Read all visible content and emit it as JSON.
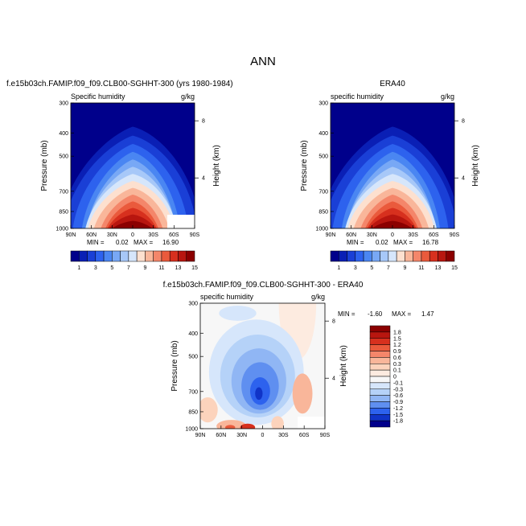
{
  "page_title": "ANN",
  "chart_data": [
    {
      "id": "model",
      "type": "heatmap",
      "title": "f.e15b03ch.FAMIP.f09_f09.CLB00-SGHHT-300 (yrs 1980-1984)",
      "left_label": "Specific humidity",
      "right_label": "g/kg",
      "ylabel": "Pressure (mb)",
      "ylabel_right": "Height (km)",
      "x_ticks": [
        "90N",
        "60N",
        "30N",
        "0",
        "30S",
        "60S",
        "90S"
      ],
      "y_ticks": [
        "300",
        "400",
        "500",
        "700",
        "850",
        "1000"
      ],
      "y_ticks_right": [
        "8",
        "4"
      ],
      "min_text": "MIN =",
      "min_value": "0.02",
      "max_text": "MAX =",
      "max_value": "16.90",
      "ylim": [
        1000,
        300
      ],
      "xlim": [
        90,
        -90
      ],
      "peak_value": 16.9,
      "levels": [
        1,
        3,
        5,
        7,
        9,
        11,
        13,
        15
      ]
    },
    {
      "id": "obs",
      "type": "heatmap",
      "title": "ERA40",
      "left_label": "specific humidity",
      "right_label": "g/kg",
      "ylabel": "Pressure (mb)",
      "ylabel_right": "Height (km)",
      "x_ticks": [
        "90N",
        "60N",
        "30N",
        "0",
        "30S",
        "60S",
        "90S"
      ],
      "y_ticks": [
        "300",
        "400",
        "500",
        "700",
        "850",
        "1000"
      ],
      "y_ticks_right": [
        "8",
        "4"
      ],
      "min_text": "MIN =",
      "min_value": "0.02",
      "max_text": "MAX =",
      "max_value": "16.78",
      "ylim": [
        1000,
        300
      ],
      "xlim": [
        90,
        -90
      ],
      "peak_value": 16.78,
      "levels": [
        1,
        3,
        5,
        7,
        9,
        11,
        13,
        15
      ]
    },
    {
      "id": "diff",
      "type": "heatmap",
      "title": "f.e15b03ch.FAMIP.f09_f09.CLB00-SGHHT-300 - ERA40",
      "left_label": "specific humidity",
      "right_label": "g/kg",
      "ylabel": "Pressure (mb)",
      "ylabel_right": "Height (km)",
      "x_ticks": [
        "90N",
        "60N",
        "30N",
        "0",
        "30S",
        "60S",
        "90S"
      ],
      "y_ticks": [
        "300",
        "400",
        "500",
        "700",
        "850",
        "1000"
      ],
      "y_ticks_right": [
        "8",
        "4"
      ],
      "min_text": "MIN =",
      "min_value": "-1.60",
      "max_text": "MAX =",
      "max_value": "1.47",
      "ylim": [
        1000,
        300
      ],
      "xlim": [
        90,
        -90
      ],
      "levels": [
        -1.8,
        -1.5,
        -1.2,
        -0.9,
        -0.6,
        -0.3,
        -0.1,
        0,
        0.1,
        0.3,
        0.6,
        0.9,
        1.2,
        1.5,
        1.8
      ]
    }
  ],
  "colorbar_top": {
    "labels": [
      "1",
      "3",
      "5",
      "7",
      "9",
      "11",
      "13",
      "15"
    ],
    "colors": [
      "#00008b",
      "#0a1fb5",
      "#1a3fd6",
      "#2d62ee",
      "#4a86f2",
      "#78a8f5",
      "#a7c8f8",
      "#d6e6fb",
      "#fde0cf",
      "#f9b69a",
      "#f4866a",
      "#ea5a3c",
      "#d7301e",
      "#b8160f",
      "#8b0000"
    ]
  },
  "colorbar_diff": {
    "labels": [
      "1.8",
      "1.5",
      "1.2",
      "0.9",
      "0.6",
      "0.3",
      "0.1",
      "0",
      "-0.1",
      "-0.3",
      "-0.6",
      "-0.9",
      "-1.2",
      "-1.5",
      "-1.8"
    ],
    "colors": [
      "#8b0000",
      "#b8160f",
      "#d7301e",
      "#ea5a3c",
      "#f4866a",
      "#f9b69a",
      "#fcd3bc",
      "#fdebe0",
      "#f7f7f7",
      "#d6e6fb",
      "#b5d2f8",
      "#90b6f4",
      "#5f8ff0",
      "#2d62ee",
      "#1034c8",
      "#00008b"
    ]
  }
}
